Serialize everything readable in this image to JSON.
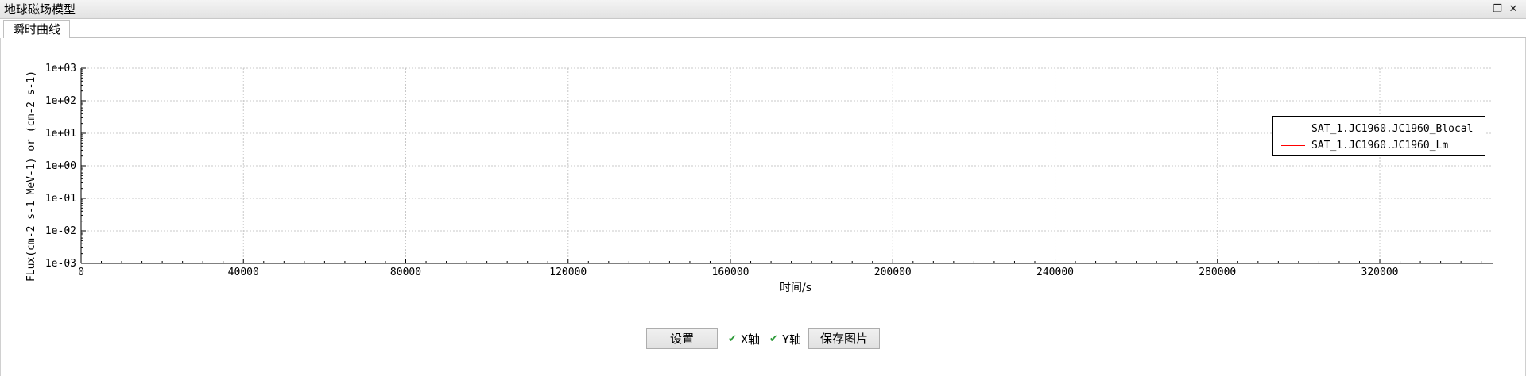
{
  "window": {
    "title": "地球磁场模型",
    "restore_icon": "restore-icon",
    "close_icon": "close-icon"
  },
  "tabs": [
    {
      "label": "瞬时曲线",
      "selected": true
    }
  ],
  "chart_data": {
    "type": "line",
    "title": "",
    "xlabel": "时间/s",
    "ylabel": "FLux(cm-2 s-1 MeV-1) or (cm-2 s-1)",
    "xlim": [
      0,
      348000
    ],
    "ylim": [
      0.001,
      1000
    ],
    "yscale": "log",
    "x_ticks": [
      0,
      40000,
      80000,
      120000,
      160000,
      200000,
      240000,
      280000,
      320000
    ],
    "y_tick_labels": [
      "1e-03",
      "1e-02",
      "1e-01",
      "1e+00",
      "1e+01",
      "1e+02",
      "1e+03"
    ],
    "grid": true,
    "legend_position": "top-right",
    "series": [
      {
        "name": "SAT_1.JC1960.JC1960_Blocal",
        "color": "#ff0000",
        "x": [],
        "y": []
      },
      {
        "name": "SAT_1.JC1960.JC1960_Lm",
        "color": "#ff0000",
        "x": [],
        "y": []
      }
    ]
  },
  "controls": {
    "settings_label": "设置",
    "x_axis_label": "X轴",
    "x_axis_checked": true,
    "y_axis_label": "Y轴",
    "y_axis_checked": true,
    "save_image_label": "保存图片"
  }
}
